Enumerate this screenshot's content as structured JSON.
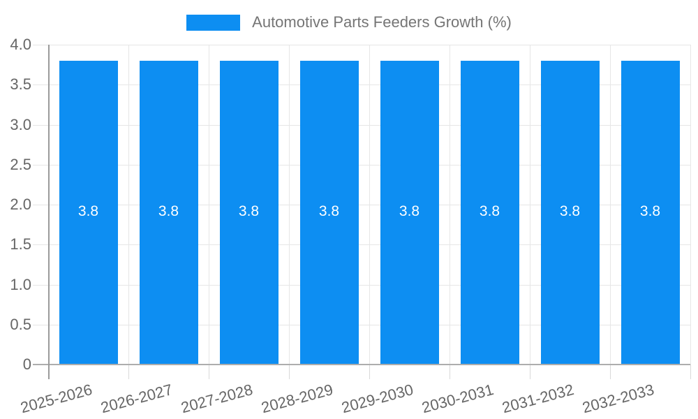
{
  "chart_data": {
    "type": "bar",
    "title": "Automotive Parts Feeders Growth (%)",
    "legend": {
      "position": "top",
      "label": "Automotive Parts Feeders Growth (%)"
    },
    "categories": [
      "2025-2026",
      "2026-2027",
      "2027-2028",
      "2028-2029",
      "2029-2030",
      "2030-2031",
      "2031-2032",
      "2032-2033"
    ],
    "series": [
      {
        "name": "Automotive Parts Feeders Growth (%)",
        "values": [
          3.8,
          3.8,
          3.8,
          3.8,
          3.8,
          3.8,
          3.8,
          3.8
        ]
      }
    ],
    "bar_value_labels": [
      "3.8",
      "3.8",
      "3.8",
      "3.8",
      "3.8",
      "3.8",
      "3.8",
      "3.8"
    ],
    "xlabel": "",
    "ylabel": "",
    "ylim": [
      0,
      4
    ],
    "yticks": [
      {
        "value": 0,
        "label": "0"
      },
      {
        "value": 0.5,
        "label": "0.5"
      },
      {
        "value": 1,
        "label": "1.0"
      },
      {
        "value": 1.5,
        "label": "1.5"
      },
      {
        "value": 2,
        "label": "2.0"
      },
      {
        "value": 2.5,
        "label": "2.5"
      },
      {
        "value": 3,
        "label": "3.0"
      },
      {
        "value": 3.5,
        "label": "3.5"
      },
      {
        "value": 4,
        "label": "4.0"
      }
    ],
    "grid": true,
    "colors": {
      "bar": "#0d8ef2",
      "title_text": "#757575",
      "axis_text": "#666666",
      "bar_label_text": "#ffffff",
      "gridline": "#e6e6e6",
      "axis_line": "#9b9b9b",
      "baseline": "#adadad",
      "tick": "#d9d9d9",
      "background": "#ffffff"
    }
  }
}
